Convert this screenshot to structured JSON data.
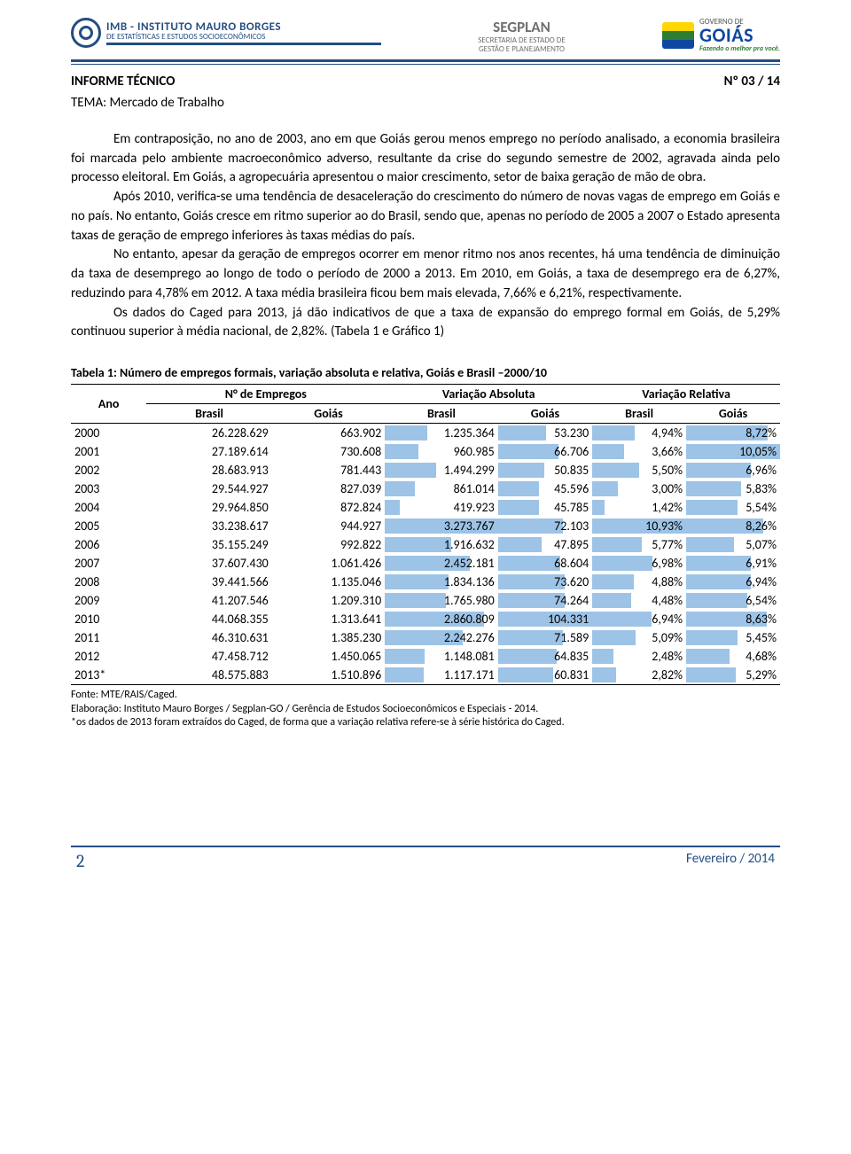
{
  "colors": {
    "accent": "#244e82",
    "bar": "#9dc3e6"
  },
  "header": {
    "imb_title": "IMB - INSTITUTO MAURO BORGES",
    "imb_sub": "DE ESTATÍSTICAS E ESTUDOS SOCIOECONÔMICOS",
    "segplan_title": "SEGPLAN",
    "segplan_sub1": "SECRETARIA DE ESTADO DE",
    "segplan_sub2": "GESTÃO E PLANEJAMENTO",
    "gov_de": "GOVERNO DE",
    "goias": "GOIÁS",
    "goias_tag": "Fazendo o melhor pra você.",
    "informe": "INFORME TÉCNICO",
    "issue": "Nº 03 / 14",
    "tema": "TEMA: Mercado de Trabalho"
  },
  "body": {
    "p1": "Em contraposição, no ano de 2003, ano em que Goiás gerou menos emprego no período analisado, a economia brasileira foi marcada pelo ambiente macroeconômico adverso, resultante da crise do segundo semestre de 2002, agravada ainda pelo processo eleitoral. Em Goiás, a agropecuária apresentou o maior crescimento, setor de baixa geração de mão de obra.",
    "p2": "Após 2010, verifica-se uma tendência de desaceleração do crescimento do número de novas vagas de emprego em Goiás e no país. No entanto, Goiás cresce em ritmo superior ao do Brasil, sendo que, apenas no período de 2005 a 2007 o Estado apresenta taxas de geração de emprego inferiores às taxas médias do país.",
    "p3": "No entanto, apesar da geração de empregos ocorrer em menor ritmo nos anos recentes, há uma tendência de diminuição da taxa de desemprego ao longo de todo o período de 2000 a 2013. Em 2010, em Goiás, a taxa de desemprego era de 6,27%, reduzindo para 4,78% em 2012. A taxa média brasileira ficou bem mais elevada, 7,66% e 6,21%, respectivamente.",
    "p4": "Os dados do Caged para 2013, já dão indicativos de que a taxa de expansão do emprego formal em Goiás, de 5,29% continuou superior à média nacional, de 2,82%. (Tabela 1 e Gráfico 1)"
  },
  "table": {
    "caption": "Tabela 1: Número de empregos formais, variação absoluta e relativa, Goiás e Brasil –2000/10",
    "h_ano": "Ano",
    "h_nemp": "N° de Empregos",
    "h_vabs": "Variação Absoluta",
    "h_vrel": "Variação Relativa",
    "h_br": "Brasil",
    "h_go": "Goiás",
    "max": {
      "vabs_br": 3273767,
      "vabs_go": 104331,
      "vrel_br": 10.93,
      "vrel_go": 10.05
    },
    "rows": [
      {
        "year": "2000",
        "emp_br": "26.228.629",
        "emp_go": "663.902",
        "vabs_br": "1.235.364",
        "vabs_br_n": 1235364,
        "vabs_go": "53.230",
        "vabs_go_n": 53230,
        "vrel_br": "4,94%",
        "vrel_br_n": 4.94,
        "vrel_go": "8,72%",
        "vrel_go_n": 8.72
      },
      {
        "year": "2001",
        "emp_br": "27.189.614",
        "emp_go": "730.608",
        "vabs_br": "960.985",
        "vabs_br_n": 960985,
        "vabs_go": "66.706",
        "vabs_go_n": 66706,
        "vrel_br": "3,66%",
        "vrel_br_n": 3.66,
        "vrel_go": "10,05%",
        "vrel_go_n": 10.05
      },
      {
        "year": "2002",
        "emp_br": "28.683.913",
        "emp_go": "781.443",
        "vabs_br": "1.494.299",
        "vabs_br_n": 1494299,
        "vabs_go": "50.835",
        "vabs_go_n": 50835,
        "vrel_br": "5,50%",
        "vrel_br_n": 5.5,
        "vrel_go": "6,96%",
        "vrel_go_n": 6.96
      },
      {
        "year": "2003",
        "emp_br": "29.544.927",
        "emp_go": "827.039",
        "vabs_br": "861.014",
        "vabs_br_n": 861014,
        "vabs_go": "45.596",
        "vabs_go_n": 45596,
        "vrel_br": "3,00%",
        "vrel_br_n": 3.0,
        "vrel_go": "5,83%",
        "vrel_go_n": 5.83
      },
      {
        "year": "2004",
        "emp_br": "29.964.850",
        "emp_go": "872.824",
        "vabs_br": "419.923",
        "vabs_br_n": 419923,
        "vabs_go": "45.785",
        "vabs_go_n": 45785,
        "vrel_br": "1,42%",
        "vrel_br_n": 1.42,
        "vrel_go": "5,54%",
        "vrel_go_n": 5.54
      },
      {
        "year": "2005",
        "emp_br": "33.238.617",
        "emp_go": "944.927",
        "vabs_br": "3.273.767",
        "vabs_br_n": 3273767,
        "vabs_go": "72.103",
        "vabs_go_n": 72103,
        "vrel_br": "10,93%",
        "vrel_br_n": 10.93,
        "vrel_go": "8,26%",
        "vrel_go_n": 8.26
      },
      {
        "year": "2006",
        "emp_br": "35.155.249",
        "emp_go": "992.822",
        "vabs_br": "1.916.632",
        "vabs_br_n": 1916632,
        "vabs_go": "47.895",
        "vabs_go_n": 47895,
        "vrel_br": "5,77%",
        "vrel_br_n": 5.77,
        "vrel_go": "5,07%",
        "vrel_go_n": 5.07
      },
      {
        "year": "2007",
        "emp_br": "37.607.430",
        "emp_go": "1.061.426",
        "vabs_br": "2.452.181",
        "vabs_br_n": 2452181,
        "vabs_go": "68.604",
        "vabs_go_n": 68604,
        "vrel_br": "6,98%",
        "vrel_br_n": 6.98,
        "vrel_go": "6,91%",
        "vrel_go_n": 6.91
      },
      {
        "year": "2008",
        "emp_br": "39.441.566",
        "emp_go": "1.135.046",
        "vabs_br": "1.834.136",
        "vabs_br_n": 1834136,
        "vabs_go": "73.620",
        "vabs_go_n": 73620,
        "vrel_br": "4,88%",
        "vrel_br_n": 4.88,
        "vrel_go": "6,94%",
        "vrel_go_n": 6.94
      },
      {
        "year": "2009",
        "emp_br": "41.207.546",
        "emp_go": "1.209.310",
        "vabs_br": "1.765.980",
        "vabs_br_n": 1765980,
        "vabs_go": "74.264",
        "vabs_go_n": 74264,
        "vrel_br": "4,48%",
        "vrel_br_n": 4.48,
        "vrel_go": "6,54%",
        "vrel_go_n": 6.54
      },
      {
        "year": "2010",
        "emp_br": "44.068.355",
        "emp_go": "1.313.641",
        "vabs_br": "2.860.809",
        "vabs_br_n": 2860809,
        "vabs_go": "104.331",
        "vabs_go_n": 104331,
        "vrel_br": "6,94%",
        "vrel_br_n": 6.94,
        "vrel_go": "8,63%",
        "vrel_go_n": 8.63
      },
      {
        "year": "2011",
        "emp_br": "46.310.631",
        "emp_go": "1.385.230",
        "vabs_br": "2.242.276",
        "vabs_br_n": 2242276,
        "vabs_go": "71.589",
        "vabs_go_n": 71589,
        "vrel_br": "5,09%",
        "vrel_br_n": 5.09,
        "vrel_go": "5,45%",
        "vrel_go_n": 5.45
      },
      {
        "year": "2012",
        "emp_br": "47.458.712",
        "emp_go": "1.450.065",
        "vabs_br": "1.148.081",
        "vabs_br_n": 1148081,
        "vabs_go": "64.835",
        "vabs_go_n": 64835,
        "vrel_br": "2,48%",
        "vrel_br_n": 2.48,
        "vrel_go": "4,68%",
        "vrel_go_n": 4.68
      },
      {
        "year": "2013*",
        "emp_br": "48.575.883",
        "emp_go": "1.510.896",
        "vabs_br": "1.117.171",
        "vabs_br_n": 1117171,
        "vabs_go": "60.831",
        "vabs_go_n": 60831,
        "vrel_br": "2,82%",
        "vrel_br_n": 2.82,
        "vrel_go": "5,29%",
        "vrel_go_n": 5.29
      }
    ],
    "note1": "Fonte: MTE/RAIS/Caged.",
    "note2": "Elaboração: Instituto Mauro Borges / Segplan-GO / Gerência de Estudos Socioeconômicos e Especiais - 2014.",
    "note3": "*os dados de 2013 foram extraídos do Caged, de forma que a variação relativa refere-se à série histórica do Caged."
  },
  "footer": {
    "page": "2",
    "date": "Fevereiro / 2014"
  }
}
